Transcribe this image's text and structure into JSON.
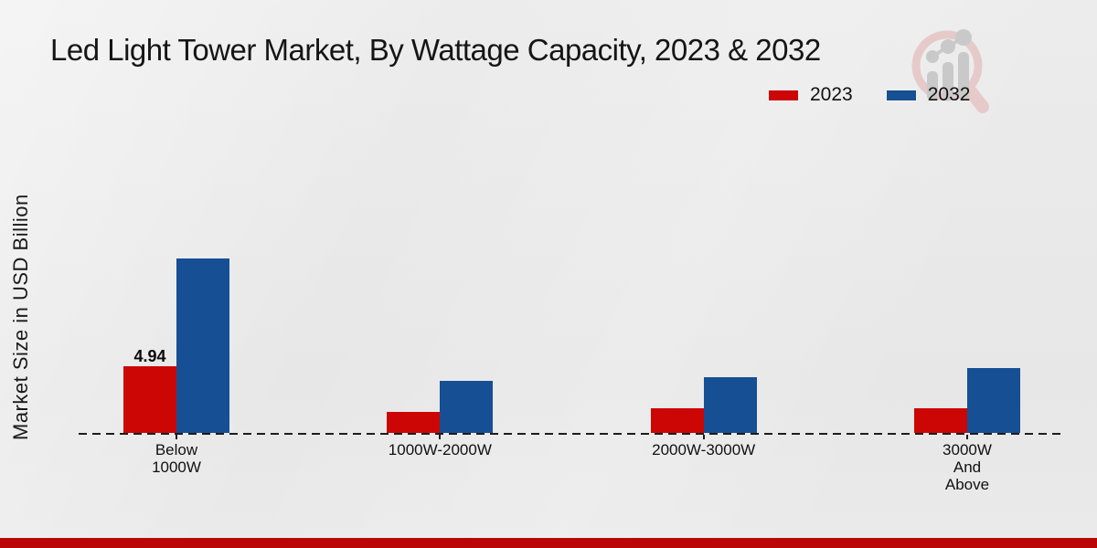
{
  "title": "Led Light Tower Market, By Wattage Capacity, 2023 & 2032",
  "chart_data": {
    "type": "bar",
    "title": "Led Light Tower Market, By Wattage Capacity, 2023 & 2032",
    "xlabel": "",
    "ylabel": "Market Size in USD Billion",
    "ylim": [
      0,
      14
    ],
    "grid": false,
    "legend_position": "top-right",
    "categories": [
      "Below\n1000W",
      "1000W-2000W",
      "2000W-3000W",
      "3000W\nAnd\nAbove"
    ],
    "series": [
      {
        "name": "2023",
        "color": "#cc0605",
        "values": [
          4.94,
          1.55,
          1.8,
          1.85
        ]
      },
      {
        "name": "2032",
        "color": "#164f94",
        "values": [
          12.9,
          3.85,
          4.15,
          4.8
        ]
      }
    ],
    "annotations": [
      {
        "series_index": 0,
        "category_index": 0,
        "text": "4.94"
      }
    ]
  },
  "branding": {
    "logo_name": "market-research-future-watermark",
    "logo_ring_color": "#e6caca",
    "logo_bars_color": "#c9c9c9",
    "footer_band_color": "#b90707"
  }
}
